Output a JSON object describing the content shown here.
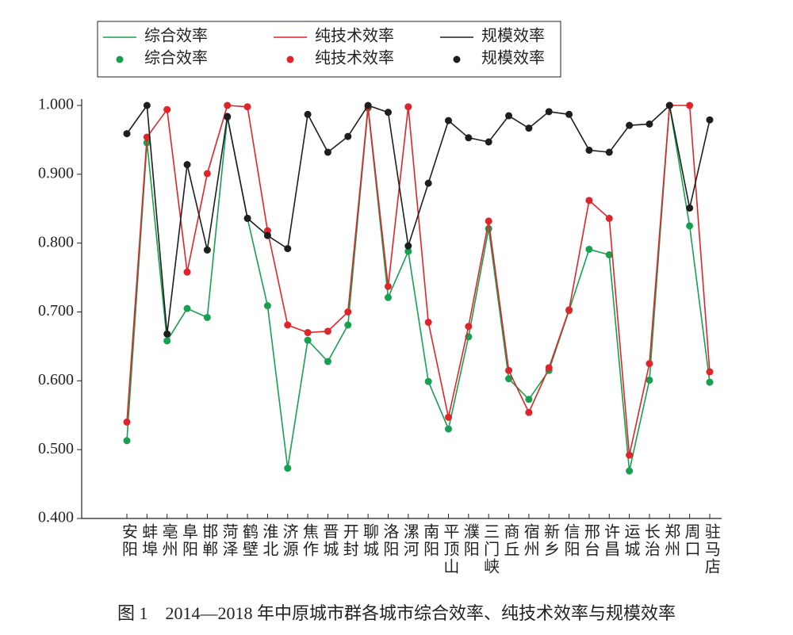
{
  "chart_data": {
    "type": "line",
    "caption": "图 1　2014—2018 年中原城市群各城市综合效率、纯技术效率与规模效率",
    "categories": [
      "安阳",
      "蚌埠",
      "亳州",
      "阜阳",
      "邯郸",
      "菏泽",
      "鹤壁",
      "淮北",
      "济源",
      "焦作",
      "晋城",
      "开封",
      "聊城",
      "洛阳",
      "漯河",
      "南阳",
      "平顶山",
      "濮阳",
      "三门峡",
      "商丘",
      "宿州",
      "新乡",
      "信阳",
      "邢台",
      "许昌",
      "运城",
      "长治",
      "郑州",
      "周口",
      "驻马店"
    ],
    "series": [
      {
        "name": "综合效率",
        "color": "#16a050",
        "values": [
          0.513,
          0.946,
          0.658,
          0.705,
          0.692,
          0.983,
          0.836,
          0.709,
          0.473,
          0.659,
          0.628,
          0.681,
          0.996,
          0.721,
          0.788,
          0.599,
          0.53,
          0.664,
          0.821,
          0.603,
          0.573,
          0.615,
          0.702,
          0.791,
          0.783,
          0.469,
          0.601,
          1.0,
          0.825,
          0.598
        ]
      },
      {
        "name": "纯技术效率",
        "color": "#e0242b",
        "values": [
          0.54,
          0.954,
          0.994,
          0.758,
          0.901,
          1.0,
          0.998,
          0.818,
          0.681,
          0.67,
          0.672,
          0.7,
          0.998,
          0.737,
          0.998,
          0.685,
          0.547,
          0.679,
          0.832,
          0.615,
          0.554,
          0.619,
          0.703,
          0.862,
          0.836,
          0.492,
          0.625,
          1.0,
          1.0,
          0.613
        ]
      },
      {
        "name": "规模效率",
        "color": "#1e1e1e",
        "values": [
          0.959,
          1.0,
          0.668,
          0.914,
          0.79,
          0.984,
          0.836,
          0.811,
          0.792,
          0.987,
          0.932,
          0.955,
          1.0,
          0.99,
          0.796,
          0.887,
          0.978,
          0.953,
          0.947,
          0.985,
          0.967,
          0.991,
          0.987,
          0.935,
          0.932,
          0.971,
          0.973,
          1.0,
          0.851,
          0.979
        ]
      }
    ],
    "ylim": [
      0.4,
      1.0
    ],
    "yticks": [
      {
        "value": 0.4,
        "label": "0.400"
      },
      {
        "value": 0.5,
        "label": "0.500"
      },
      {
        "value": 0.6,
        "label": "0.600"
      },
      {
        "value": 0.7,
        "label": "0.700"
      },
      {
        "value": 0.8,
        "label": "0.800"
      },
      {
        "value": 0.9,
        "label": "0.900"
      },
      {
        "value": 1.0,
        "label": "1.000"
      }
    ],
    "grid": false
  }
}
